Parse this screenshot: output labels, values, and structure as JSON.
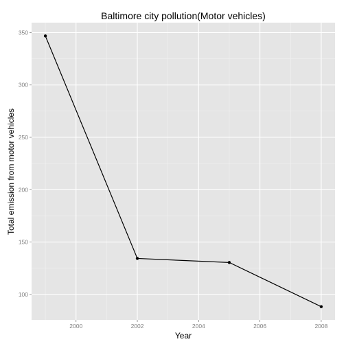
{
  "chart_data": {
    "type": "line",
    "title": "Baltimore city pollution(Motor vehicles)",
    "xlabel": "Year",
    "ylabel": "Total emission from motor vehicles",
    "x": [
      1999,
      2002,
      2005,
      2008
    ],
    "series": [
      {
        "values": [
          346.82,
          134.31,
          130.43,
          88.28
        ]
      }
    ],
    "xticks": [
      2000,
      2002,
      2004,
      2006,
      2008
    ],
    "yticks": [
      100,
      150,
      200,
      250,
      300,
      350
    ],
    "xlim": [
      1998.55,
      2008.45
    ],
    "ylim": [
      75.6,
      359.5
    ],
    "grid": true,
    "colors": {
      "panel_background": "#e5e5e5",
      "grid_major": "#ffffff",
      "grid_minor": "#f2f2f2",
      "line": "#000000",
      "tick_label": "#7f7f7f"
    }
  }
}
